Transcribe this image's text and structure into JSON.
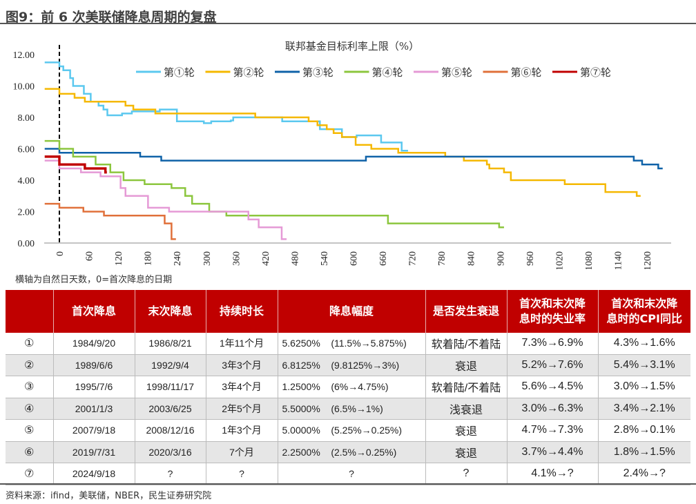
{
  "figure_title": "图9：前 6 次美联储降息周期的复盘",
  "note": "横轴为自然日天数，0=首次降息的日期",
  "source": "资料来源：ifind，美联储，NBER，民生证券研究院",
  "chart_data": {
    "type": "line",
    "title": "联邦基金目标利率上限（%）",
    "xlabel": "",
    "ylabel": "",
    "xlim": [
      -30,
      1260
    ],
    "ylim": [
      0,
      12
    ],
    "x_ticks": [
      0,
      60,
      120,
      180,
      240,
      300,
      360,
      420,
      480,
      540,
      600,
      660,
      720,
      780,
      840,
      900,
      960,
      1020,
      1080,
      1140,
      1200
    ],
    "y_ticks": [
      "0.00",
      "2.00",
      "4.00",
      "6.00",
      "8.00",
      "10.00",
      "12.00"
    ],
    "reference_line_x": 0,
    "legend_position": "top",
    "step": "after",
    "series": [
      {
        "name": "第①轮",
        "color": "#5bc8ef",
        "points": [
          [
            -30,
            11.5
          ],
          [
            0,
            11.25
          ],
          [
            8,
            11.0
          ],
          [
            22,
            10.5
          ],
          [
            28,
            10.0
          ],
          [
            50,
            9.5
          ],
          [
            64,
            9.0
          ],
          [
            80,
            8.75
          ],
          [
            90,
            8.5
          ],
          [
            98,
            8.13
          ],
          [
            128,
            8.25
          ],
          [
            148,
            8.38
          ],
          [
            205,
            8.5
          ],
          [
            240,
            7.75
          ],
          [
            295,
            7.63
          ],
          [
            310,
            7.75
          ],
          [
            350,
            7.8
          ],
          [
            355,
            8.0
          ],
          [
            455,
            7.75
          ],
          [
            532,
            7.25
          ],
          [
            577,
            6.75
          ],
          [
            607,
            6.85
          ],
          [
            657,
            6.4
          ],
          [
            699,
            5.88
          ],
          [
            712,
            5.88
          ]
        ]
      },
      {
        "name": "第②轮",
        "color": "#f5b800",
        "points": [
          [
            -30,
            9.8125
          ],
          [
            0,
            9.5
          ],
          [
            31,
            9.25
          ],
          [
            52,
            9.0
          ],
          [
            135,
            8.75
          ],
          [
            151,
            8.5
          ],
          [
            196,
            8.25
          ],
          [
            400,
            8.0
          ],
          [
            509,
            7.75
          ],
          [
            527,
            7.5
          ],
          [
            546,
            7.25
          ],
          [
            560,
            7.0
          ],
          [
            577,
            6.75
          ],
          [
            605,
            6.25
          ],
          [
            637,
            6.0
          ],
          [
            692,
            5.75
          ],
          [
            788,
            5.5
          ],
          [
            826,
            5.25
          ],
          [
            873,
            5.0
          ],
          [
            878,
            4.75
          ],
          [
            908,
            4.5
          ],
          [
            922,
            4.0
          ],
          [
            1032,
            3.75
          ],
          [
            1115,
            3.25
          ],
          [
            1179,
            3.0
          ],
          [
            1187,
            3.0
          ]
        ]
      },
      {
        "name": "第③轮",
        "color": "#0f62a8",
        "points": [
          [
            -30,
            6.0
          ],
          [
            0,
            5.75
          ],
          [
            165,
            5.5
          ],
          [
            208,
            5.25
          ],
          [
            626,
            5.5
          ],
          [
            1173,
            5.25
          ],
          [
            1190,
            5.0
          ],
          [
            1223,
            4.75
          ],
          [
            1232,
            4.75
          ]
        ]
      },
      {
        "name": "第④轮",
        "color": "#8cc63e",
        "points": [
          [
            -30,
            6.5
          ],
          [
            0,
            6.0
          ],
          [
            28,
            5.5
          ],
          [
            74,
            5.0
          ],
          [
            104,
            4.5
          ],
          [
            131,
            4.0
          ],
          [
            174,
            3.75
          ],
          [
            229,
            3.5
          ],
          [
            257,
            3.0
          ],
          [
            271,
            2.5
          ],
          [
            306,
            2.0
          ],
          [
            341,
            1.75
          ],
          [
            671,
            1.25
          ],
          [
            898,
            1.0
          ],
          [
            908,
            1.0
          ]
        ]
      },
      {
        "name": "第⑤轮",
        "color": "#e59ad6",
        "points": [
          [
            -30,
            5.25
          ],
          [
            0,
            4.75
          ],
          [
            44,
            4.5
          ],
          [
            84,
            4.25
          ],
          [
            125,
            3.5
          ],
          [
            135,
            3.0
          ],
          [
            181,
            2.25
          ],
          [
            224,
            2.0
          ],
          [
            386,
            1.5
          ],
          [
            407,
            1.0
          ],
          [
            454,
            0.25
          ],
          [
            464,
            0.25
          ]
        ]
      },
      {
        "name": "第⑥轮",
        "color": "#e0703a",
        "points": [
          [
            -30,
            2.5
          ],
          [
            0,
            2.25
          ],
          [
            49,
            2.0
          ],
          [
            91,
            1.75
          ],
          [
            215,
            1.25
          ],
          [
            229,
            0.25
          ],
          [
            238,
            0.25
          ]
        ]
      },
      {
        "name": "第⑦轮",
        "color": "#c00000",
        "points": [
          [
            -30,
            5.5
          ],
          [
            0,
            5.0
          ],
          [
            52,
            4.75
          ],
          [
            94,
            4.5
          ],
          [
            97,
            4.5
          ]
        ]
      }
    ]
  },
  "table": {
    "headers": [
      "",
      "首次降息",
      "末次降息",
      "持续时长",
      "降息幅度",
      "是否发生衰退",
      "首次和末次降\n息时的失业率",
      "首次和末次降\n息时的CPI同比"
    ],
    "rows": [
      [
        "①",
        "1984/9/20",
        "1986/8/21",
        "1年11个月",
        "5.6250%    (11.5%→5.875%)",
        "软着陆/不着陆",
        "7.3%→6.9%",
        "4.3%→1.6%"
      ],
      [
        "②",
        "1989/6/6",
        "1992/9/4",
        "3年3个月",
        "6.8125%    (9.8125%→3%)",
        "衰退",
        "5.2%→7.6%",
        "5.4%→3.1%"
      ],
      [
        "③",
        "1995/7/6",
        "1998/11/17",
        "3年4个月",
        "1.2500%    (6%→4.75%)",
        "软着陆/不着陆",
        "5.6%→4.5%",
        "3.0%→1.5%"
      ],
      [
        "④",
        "2001/1/3",
        "2003/6/25",
        "2年5个月",
        "5.5000%    (6.5%→1%)",
        "浅衰退",
        "3.0%→6.3%",
        "3.4%→2.1%"
      ],
      [
        "⑤",
        "2007/9/18",
        "2008/12/16",
        "1年3个月",
        "5.0000%    (5.25%→0.25%)",
        "衰退",
        "4.7%→7.3%",
        "2.8%→0.1%"
      ],
      [
        "⑥",
        "2019/7/31",
        "2020/3/16",
        "7个月",
        "2.2500%    (2.5%→0.25%)",
        "衰退",
        "3.7%→4.4%",
        "1.8%→1.5%"
      ],
      [
        "⑦",
        "2024/9/18",
        "?",
        "?",
        "?",
        "?",
        "4.1%→?",
        "2.4%→?"
      ]
    ]
  }
}
